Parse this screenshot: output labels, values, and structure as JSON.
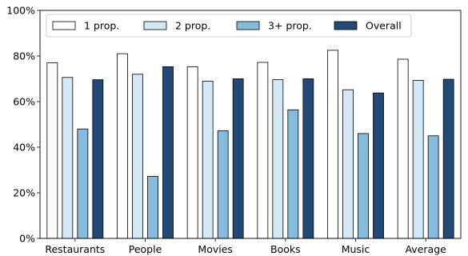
{
  "chart_data": {
    "type": "bar",
    "title": "",
    "xlabel": "",
    "ylabel": "",
    "categories": [
      "Restaurants",
      "People",
      "Movies",
      "Books",
      "Music",
      "Average"
    ],
    "ylim": [
      0,
      100
    ],
    "y_ticks": [
      0,
      20,
      40,
      60,
      80,
      100
    ],
    "y_tick_format": "{v}%",
    "grid": false,
    "legend": {
      "placement": "top-left",
      "columns": 4
    },
    "series": [
      {
        "name": "1 prop.",
        "color": "#ffffff",
        "values": [
          77.0,
          81.0,
          75.3,
          77.2,
          82.5,
          78.6
        ]
      },
      {
        "name": "2 prop.",
        "color": "#d3e8f4",
        "values": [
          70.6,
          72.0,
          69.0,
          69.6,
          65.2,
          69.3
        ]
      },
      {
        "name": "3+ prop.",
        "color": "#85bbdd",
        "values": [
          48.0,
          27.2,
          47.2,
          56.4,
          46.0,
          45.0
        ]
      },
      {
        "name": "Overall",
        "color": "#234a76",
        "values": [
          69.6,
          75.3,
          70.0,
          70.0,
          63.8,
          69.8
        ]
      }
    ]
  }
}
